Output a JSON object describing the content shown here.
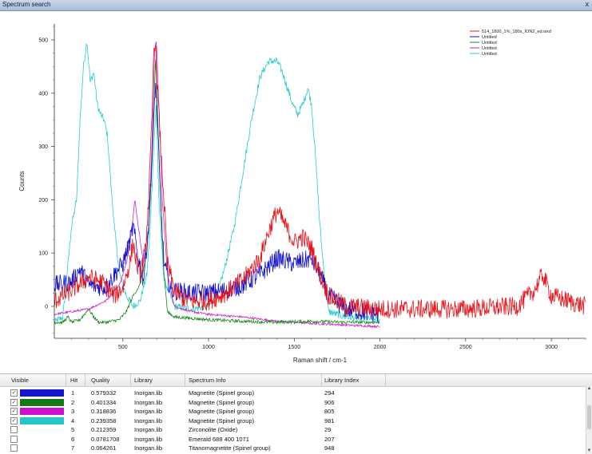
{
  "window": {
    "title": "Spectrum search",
    "close_glyph": "x"
  },
  "chart_data": {
    "type": "line",
    "xlabel": "Raman shift / cm-1",
    "ylabel": "Counts",
    "xlim": [
      100,
      3200
    ],
    "ylim": [
      -60,
      530
    ],
    "x_ticks": [
      500,
      1000,
      1500,
      2000,
      2500,
      3000
    ],
    "y_ticks": [
      0,
      100,
      200,
      300,
      400,
      500
    ],
    "legend_position": "top-right",
    "legend": [
      "514_1800_1%_180s_ION2_ed.wxd",
      "Untitled",
      "Untitled",
      "Untitled",
      "Untitled"
    ],
    "series": [
      {
        "name": "514_1800_1%_180s_ION2_ed.wxd",
        "color": "#e8141b",
        "noise": 18,
        "points": [
          [
            100,
            10
          ],
          [
            200,
            30
          ],
          [
            300,
            55
          ],
          [
            380,
            45
          ],
          [
            420,
            30
          ],
          [
            450,
            20
          ],
          [
            500,
            35
          ],
          [
            540,
            80
          ],
          [
            560,
            120
          ],
          [
            580,
            80
          ],
          [
            600,
            60
          ],
          [
            630,
            100
          ],
          [
            650,
            200
          ],
          [
            670,
            350
          ],
          [
            680,
            480
          ],
          [
            690,
            500
          ],
          [
            700,
            420
          ],
          [
            720,
            300
          ],
          [
            740,
            200
          ],
          [
            760,
            80
          ],
          [
            800,
            30
          ],
          [
            850,
            15
          ],
          [
            900,
            10
          ],
          [
            1000,
            10
          ],
          [
            1100,
            25
          ],
          [
            1200,
            50
          ],
          [
            1300,
            90
          ],
          [
            1350,
            140
          ],
          [
            1400,
            180
          ],
          [
            1450,
            150
          ],
          [
            1500,
            120
          ],
          [
            1550,
            130
          ],
          [
            1600,
            110
          ],
          [
            1650,
            60
          ],
          [
            1700,
            20
          ],
          [
            1800,
            0
          ],
          [
            2000,
            -5
          ],
          [
            2500,
            -5
          ],
          [
            2800,
            0
          ],
          [
            2900,
            30
          ],
          [
            2950,
            60
          ],
          [
            3000,
            20
          ],
          [
            3200,
            0
          ]
        ]
      },
      {
        "name": "Untitled",
        "color": "#1111cc",
        "noise": 18,
        "points": [
          [
            100,
            40
          ],
          [
            200,
            45
          ],
          [
            250,
            70
          ],
          [
            300,
            40
          ],
          [
            400,
            35
          ],
          [
            450,
            60
          ],
          [
            500,
            80
          ],
          [
            540,
            120
          ],
          [
            560,
            150
          ],
          [
            590,
            90
          ],
          [
            620,
            50
          ],
          [
            650,
            150
          ],
          [
            680,
            350
          ],
          [
            690,
            420
          ],
          [
            700,
            360
          ],
          [
            720,
            200
          ],
          [
            740,
            80
          ],
          [
            780,
            30
          ],
          [
            900,
            25
          ],
          [
            1000,
            25
          ],
          [
            1100,
            30
          ],
          [
            1200,
            40
          ],
          [
            1300,
            60
          ],
          [
            1400,
            90
          ],
          [
            1500,
            80
          ],
          [
            1600,
            90
          ],
          [
            1650,
            60
          ],
          [
            1700,
            20
          ],
          [
            1800,
            -5
          ],
          [
            1900,
            -10
          ],
          [
            2000,
            -15
          ]
        ]
      },
      {
        "name": "Untitled",
        "color": "#1a8a1a",
        "noise": 3,
        "points": [
          [
            100,
            -30
          ],
          [
            150,
            -30
          ],
          [
            180,
            -20
          ],
          [
            200,
            -30
          ],
          [
            250,
            -25
          ],
          [
            300,
            -5
          ],
          [
            330,
            -20
          ],
          [
            360,
            -30
          ],
          [
            400,
            -30
          ],
          [
            480,
            -25
          ],
          [
            520,
            -10
          ],
          [
            560,
            20
          ],
          [
            600,
            40
          ],
          [
            640,
            100
          ],
          [
            660,
            200
          ],
          [
            680,
            350
          ],
          [
            690,
            470
          ],
          [
            700,
            380
          ],
          [
            720,
            200
          ],
          [
            740,
            60
          ],
          [
            760,
            -10
          ],
          [
            800,
            -20
          ],
          [
            1000,
            -25
          ],
          [
            1200,
            -28
          ],
          [
            1400,
            -30
          ],
          [
            1600,
            -28
          ],
          [
            1800,
            -30
          ],
          [
            2000,
            -30
          ]
        ]
      },
      {
        "name": "Untitled",
        "color": "#cc22cc",
        "noise": 2,
        "points": [
          [
            100,
            -15
          ],
          [
            200,
            -10
          ],
          [
            300,
            -5
          ],
          [
            400,
            10
          ],
          [
            480,
            40
          ],
          [
            520,
            80
          ],
          [
            550,
            140
          ],
          [
            570,
            200
          ],
          [
            590,
            150
          ],
          [
            620,
            80
          ],
          [
            650,
            150
          ],
          [
            670,
            300
          ],
          [
            685,
            480
          ],
          [
            695,
            500
          ],
          [
            710,
            380
          ],
          [
            730,
            200
          ],
          [
            760,
            60
          ],
          [
            800,
            0
          ],
          [
            900,
            -10
          ],
          [
            1000,
            -15
          ],
          [
            1200,
            -20
          ],
          [
            1400,
            -28
          ],
          [
            1600,
            -32
          ],
          [
            1800,
            -35
          ],
          [
            2000,
            -38
          ]
        ]
      },
      {
        "name": "Untitled",
        "color": "#27cccc",
        "noise": 7,
        "points": [
          [
            100,
            -30
          ],
          [
            150,
            -20
          ],
          [
            180,
            80
          ],
          [
            200,
            150
          ],
          [
            230,
            200
          ],
          [
            250,
            350
          ],
          [
            270,
            450
          ],
          [
            290,
            500
          ],
          [
            310,
            420
          ],
          [
            330,
            440
          ],
          [
            350,
            380
          ],
          [
            370,
            360
          ],
          [
            390,
            350
          ],
          [
            410,
            320
          ],
          [
            430,
            230
          ],
          [
            450,
            150
          ],
          [
            480,
            60
          ],
          [
            520,
            20
          ],
          [
            560,
            0
          ],
          [
            600,
            10
          ],
          [
            640,
            60
          ],
          [
            660,
            150
          ],
          [
            680,
            300
          ],
          [
            695,
            380
          ],
          [
            710,
            200
          ],
          [
            740,
            50
          ],
          [
            800,
            0
          ],
          [
            900,
            -5
          ],
          [
            1000,
            0
          ],
          [
            1050,
            20
          ],
          [
            1100,
            80
          ],
          [
            1150,
            150
          ],
          [
            1200,
            250
          ],
          [
            1250,
            350
          ],
          [
            1300,
            430
          ],
          [
            1350,
            460
          ],
          [
            1400,
            460
          ],
          [
            1430,
            440
          ],
          [
            1460,
            410
          ],
          [
            1490,
            380
          ],
          [
            1520,
            360
          ],
          [
            1550,
            380
          ],
          [
            1580,
            410
          ],
          [
            1600,
            380
          ],
          [
            1620,
            300
          ],
          [
            1650,
            150
          ],
          [
            1680,
            40
          ],
          [
            1700,
            -10
          ],
          [
            1800,
            -20
          ],
          [
            2000,
            -25
          ]
        ]
      }
    ]
  },
  "table": {
    "headers": [
      "Visible",
      "Hit",
      "Quality",
      "Library",
      "Spectrum Info",
      "Library Index"
    ],
    "rows": [
      {
        "checked": true,
        "check_glyph": "✓",
        "color": "#1515d6",
        "hit": "1",
        "quality": "0.579332",
        "library": "Inorgan.lib",
        "info": "Magnetite (Spinel group)",
        "index": "294"
      },
      {
        "checked": true,
        "check_glyph": "✓",
        "color": "#137a13",
        "hit": "2",
        "quality": "0.401334",
        "library": "Inorgan.lib",
        "info": "Magnetite (Spinel group)",
        "index": "906"
      },
      {
        "checked": true,
        "check_glyph": "✓",
        "color": "#cc10cc",
        "hit": "3",
        "quality": "0.318836",
        "library": "Inorgan.lib",
        "info": "Magnetite (Spinel group)",
        "index": "805"
      },
      {
        "checked": true,
        "check_glyph": "✓",
        "color": "#24c6c6",
        "hit": "4",
        "quality": "0.239358",
        "library": "Inorgan.lib",
        "info": "Magnetite (Spinel group)",
        "index": "981"
      },
      {
        "checked": false,
        "check_glyph": "",
        "color": "",
        "hit": "5",
        "quality": "0.212359",
        "library": "Inorgan.lib",
        "info": "Zirconolite (Oxide)",
        "index": "29"
      },
      {
        "checked": false,
        "check_glyph": "",
        "color": "",
        "hit": "6",
        "quality": "0.0781708",
        "library": "Inorgan.lib",
        "info": "Emerald 688 400 1071",
        "index": "207"
      },
      {
        "checked": false,
        "check_glyph": "",
        "color": "",
        "hit": "7",
        "quality": "0.064261",
        "library": "Inorgan.lib",
        "info": "Titanomagnetite (Spinel group)",
        "index": "948"
      }
    ]
  }
}
